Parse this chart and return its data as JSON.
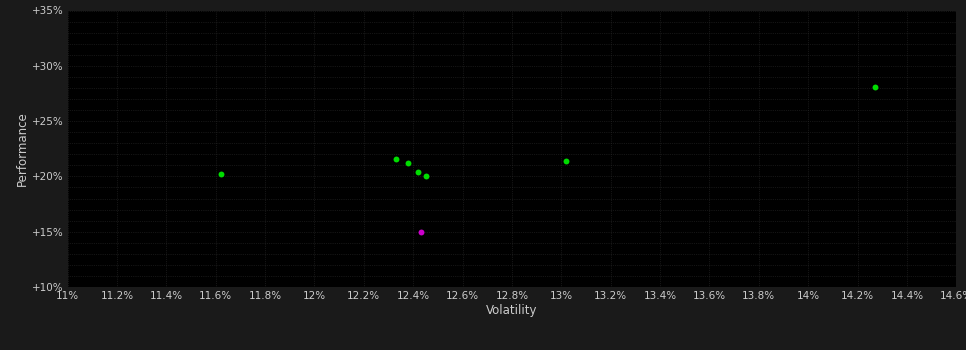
{
  "background_color": "#1a1a1a",
  "plot_bg_color": "#000000",
  "grid_color": "#2a2a2a",
  "text_color": "#cccccc",
  "xlabel": "Volatility",
  "ylabel": "Performance",
  "xlim": [
    0.11,
    0.146
  ],
  "ylim": [
    0.1,
    0.35
  ],
  "xticks": [
    0.11,
    0.112,
    0.114,
    0.116,
    0.118,
    0.12,
    0.122,
    0.124,
    0.126,
    0.128,
    0.13,
    0.132,
    0.134,
    0.136,
    0.138,
    0.14,
    0.142,
    0.144,
    0.146
  ],
  "yticks": [
    0.1,
    0.15,
    0.2,
    0.25,
    0.3,
    0.35
  ],
  "ytick_labels": [
    "+10%",
    "+15%",
    "+20%",
    "+25%",
    "+30%",
    "+35%"
  ],
  "xtick_labels": [
    "11%",
    "11.2%",
    "11.4%",
    "11.6%",
    "11.8%",
    "12%",
    "12.2%",
    "12.4%",
    "12.6%",
    "12.8%",
    "13%",
    "13.2%",
    "13.4%",
    "13.6%",
    "13.8%",
    "14%",
    "14.2%",
    "14.4%",
    "14.6%"
  ],
  "green_points": [
    [
      0.1162,
      0.202
    ],
    [
      0.1233,
      0.216
    ],
    [
      0.1238,
      0.212
    ],
    [
      0.1242,
      0.204
    ],
    [
      0.1245,
      0.2
    ],
    [
      0.1302,
      0.214
    ],
    [
      0.1427,
      0.281
    ]
  ],
  "magenta_points": [
    [
      0.1243,
      0.15
    ]
  ],
  "green_color": "#00dd00",
  "magenta_color": "#cc00cc",
  "marker_size": 18,
  "tick_fontsize": 7.5,
  "label_fontsize": 8.5
}
